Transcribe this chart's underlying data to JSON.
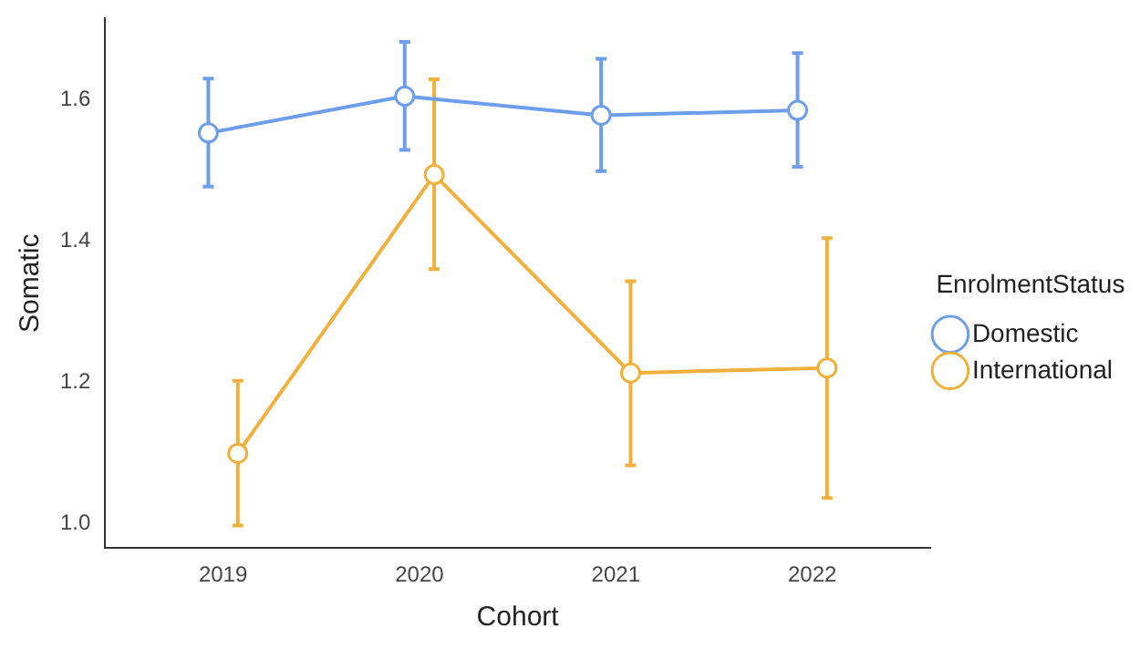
{
  "chart_data": {
    "type": "line",
    "xlabel": "Cohort",
    "ylabel": "Somatic",
    "legend_title": "EnrolmentStatus",
    "categories": [
      "2019",
      "2020",
      "2021",
      "2022"
    ],
    "series": [
      {
        "name": "Domestic",
        "color": "#6d9eeb",
        "values": [
          1.553,
          1.605,
          1.578,
          1.585
        ],
        "errors": [
          [
            1.477,
            1.63
          ],
          [
            1.529,
            1.682
          ],
          [
            1.499,
            1.658
          ],
          [
            1.505,
            1.666
          ]
        ]
      },
      {
        "name": "International",
        "color": "#f0b03c",
        "values": [
          1.099,
          1.494,
          1.213,
          1.22
        ],
        "errors": [
          [
            0.997,
            1.202
          ],
          [
            1.36,
            1.629
          ],
          [
            1.082,
            1.343
          ],
          [
            1.036,
            1.404
          ]
        ]
      }
    ],
    "ylim": [
      0.965,
      1.715
    ],
    "yticks": [
      {
        "value": 1.0,
        "label": "1.0"
      },
      {
        "value": 1.2,
        "label": "1.2"
      },
      {
        "value": 1.4,
        "label": "1.4"
      },
      {
        "value": 1.6,
        "label": "1.6"
      }
    ],
    "grid": false,
    "legend": "right",
    "marker": "circle",
    "line_style": "solid"
  }
}
